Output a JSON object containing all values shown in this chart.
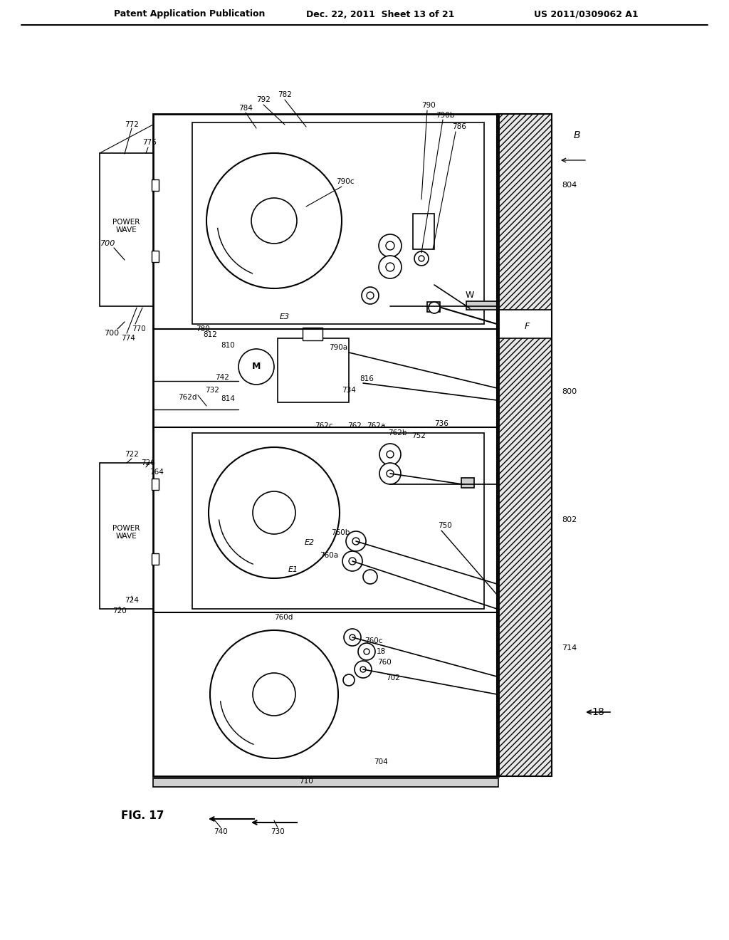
{
  "header_left": "Patent Application Publication",
  "header_mid": "Dec. 22, 2011  Sheet 13 of 21",
  "header_right": "US 2011/0309062 A1",
  "fig_label": "FIG. 17",
  "background_color": "#ffffff",
  "line_color": "#000000"
}
